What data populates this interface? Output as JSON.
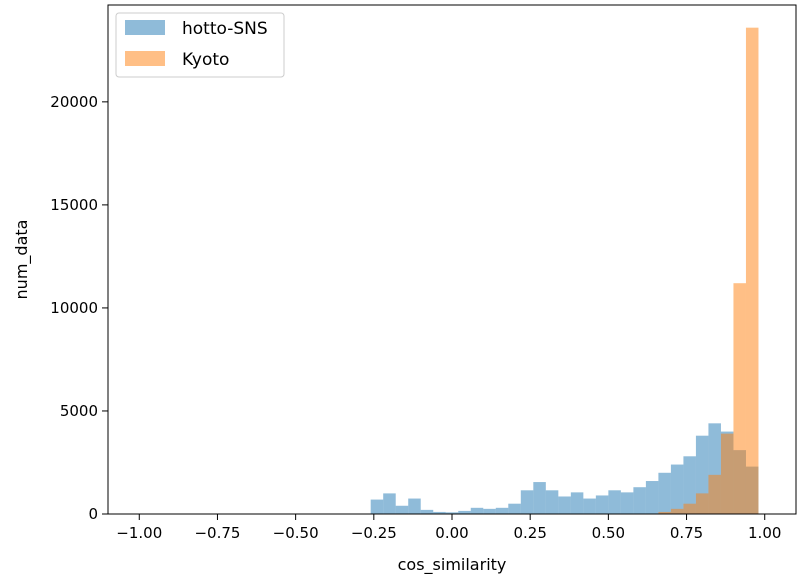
{
  "chart_data": {
    "type": "bar",
    "subtype": "overlapping-histogram",
    "title": "",
    "xlabel": "cos_similarity",
    "ylabel": "num_data",
    "xlim": [
      -1.1,
      1.1
    ],
    "ylim": [
      0,
      24700
    ],
    "x_ticks": [
      -1.0,
      -0.75,
      -0.5,
      -0.25,
      0.0,
      0.25,
      0.5,
      0.75,
      1.0
    ],
    "x_tick_labels": [
      "−1.00",
      "−0.75",
      "−0.50",
      "−0.25",
      "0.00",
      "0.25",
      "0.50",
      "0.75",
      "1.00"
    ],
    "y_ticks": [
      0,
      5000,
      10000,
      15000,
      20000
    ],
    "y_tick_labels": [
      "0",
      "5000",
      "10000",
      "15000",
      "20000"
    ],
    "grid": false,
    "legend_position": "top-left",
    "series": [
      {
        "name": "hotto-SNS",
        "color": "#1f77b4",
        "opacity": 0.5,
        "bin_width": 0.04,
        "bin_starts": [
          -0.26,
          -0.22,
          -0.18,
          -0.14,
          -0.1,
          -0.06,
          -0.02,
          0.02,
          0.06,
          0.1,
          0.14,
          0.18,
          0.22,
          0.26,
          0.3,
          0.34,
          0.38,
          0.42,
          0.46,
          0.5,
          0.54,
          0.58,
          0.62,
          0.66,
          0.7,
          0.74,
          0.78,
          0.82,
          0.86,
          0.9,
          0.94
        ],
        "values": [
          700,
          1000,
          400,
          750,
          200,
          100,
          80,
          150,
          300,
          250,
          300,
          500,
          1150,
          1550,
          1150,
          850,
          1050,
          750,
          900,
          1150,
          1050,
          1300,
          1600,
          2000,
          2400,
          2800,
          3800,
          4400,
          4000,
          3100,
          2300
        ]
      },
      {
        "name": "Kyoto",
        "color": "#ff7f0e",
        "opacity": 0.5,
        "bin_width": 0.04,
        "bin_starts": [
          0.62,
          0.66,
          0.7,
          0.74,
          0.78,
          0.82,
          0.86,
          0.9,
          0.94
        ],
        "values": [
          20,
          100,
          250,
          500,
          1000,
          1900,
          3900,
          11200,
          23600
        ]
      }
    ]
  }
}
